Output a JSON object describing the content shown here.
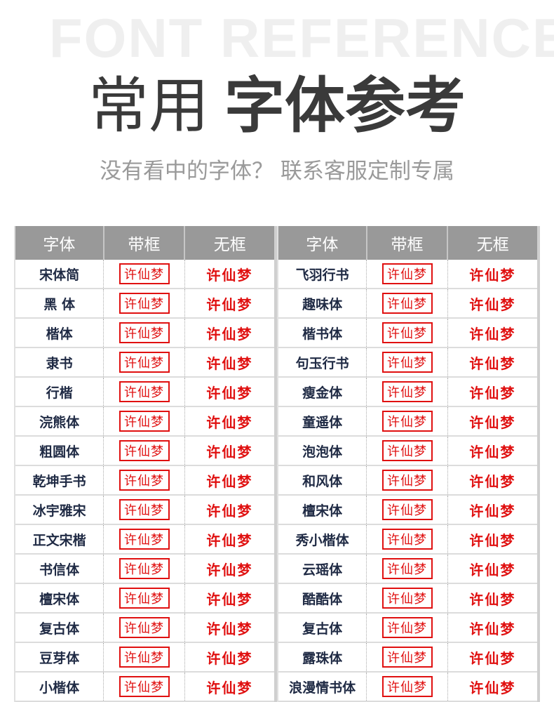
{
  "header": {
    "watermark": "FONT REFERENCE",
    "title_light": "常用",
    "title_bold": "字体参考",
    "subtitle": "没有看中的字体？  联系客服定制专属"
  },
  "columns": [
    "字体",
    "带框",
    "无框"
  ],
  "sample_text": "许仙梦",
  "colors": {
    "sample": "#e01010",
    "header_bg": "#999999",
    "font_name": "#1f2a44"
  },
  "left_table": [
    "宋体简",
    "黑 体",
    "楷体",
    "隶书",
    "行楷",
    "浣熊体",
    "粗圆体",
    "乾坤手书",
    "冰宇雅宋",
    "正文宋楷",
    "书信体",
    "檀宋体",
    "复古体",
    "豆芽体",
    "小楷体"
  ],
  "right_table": [
    "飞羽行书",
    "趣味体",
    "楷书体",
    "句玉行书",
    "瘦金体",
    "童遥体",
    "泡泡体",
    "和风体",
    "檀宋体",
    "秀小楷体",
    "云瑶体",
    "酷酷体",
    "复古体",
    "露珠体",
    "浪漫情书体"
  ]
}
